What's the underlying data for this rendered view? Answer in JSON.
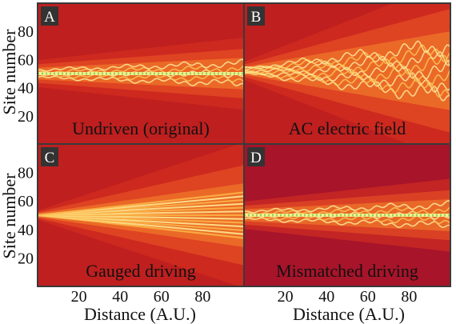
{
  "chart_data": {
    "type": "heatmap",
    "ylabel": "Site number",
    "xlabel": "Distance (A.U.)",
    "xlim": [
      0,
      100
    ],
    "ylim": [
      0,
      100
    ],
    "x_ticks": [
      20,
      40,
      60,
      80
    ],
    "y_ticks": [
      20,
      40,
      60,
      80
    ],
    "colormap": [
      "#b31a1c",
      "#e03a1e",
      "#f57a2a",
      "#fbbd4a",
      "#fdf39a",
      "#ffffff"
    ],
    "panels": [
      {
        "letter": "A",
        "title": "Undriven (original)",
        "background": "#bf1f1f",
        "center_site": 50,
        "spread_per_distance": 0.05,
        "base_width": 3,
        "pattern": "localized"
      },
      {
        "letter": "B",
        "title": "AC electric field",
        "background": "#bf1f1f",
        "center_site": 52,
        "spread_per_distance": 0.18,
        "base_width": 2,
        "pattern": "diffusive"
      },
      {
        "letter": "C",
        "title": "Gauged driving",
        "background": "#bf1f1f",
        "center_site": 50,
        "spread_per_distance": 0.15,
        "base_width": 1,
        "pattern": "ballistic"
      },
      {
        "letter": "D",
        "title": "Mismatched driving",
        "background": "#a8142a",
        "center_site": 50,
        "spread_per_distance": 0.05,
        "base_width": 3,
        "pattern": "breathing"
      }
    ]
  }
}
